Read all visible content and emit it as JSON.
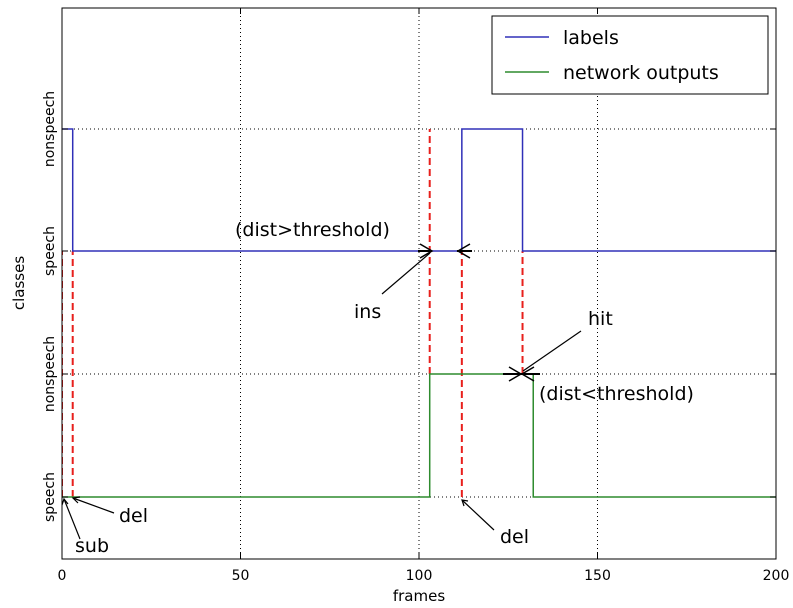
{
  "chart_data": {
    "type": "line",
    "xlabel": "frames",
    "ylabel": "classes",
    "xlim": [
      0,
      200
    ],
    "ylim": [
      0,
      4
    ],
    "x_ticks": [
      {
        "value": 0,
        "label": "0"
      },
      {
        "value": 50,
        "label": "50"
      },
      {
        "value": 100,
        "label": "100"
      },
      {
        "value": 150,
        "label": "150"
      },
      {
        "value": 200,
        "label": "200"
      }
    ],
    "y_ticks": [
      {
        "value": 0,
        "label": "speech"
      },
      {
        "value": 1,
        "label": "nonspeech"
      },
      {
        "value": 2,
        "label": "speech"
      },
      {
        "value": 3,
        "label": "nonspeech"
      }
    ],
    "grid": true,
    "legend_position": "top-right",
    "series": [
      {
        "name": "labels",
        "color": "#3030b8",
        "style": "step",
        "points": [
          [
            0,
            3
          ],
          [
            3,
            3
          ],
          [
            3,
            2
          ],
          [
            112,
            2
          ],
          [
            112,
            3
          ],
          [
            129,
            3
          ],
          [
            129,
            2
          ],
          [
            200,
            2
          ]
        ]
      },
      {
        "name": "network outputs",
        "color": "#2e8b2e",
        "style": "step",
        "points": [
          [
            0,
            0
          ],
          [
            103,
            0
          ],
          [
            103,
            1
          ],
          [
            132,
            1
          ],
          [
            132,
            0
          ],
          [
            200,
            0
          ]
        ]
      }
    ],
    "event_lines": {
      "color": "#e8201c",
      "segments": [
        {
          "x": 0,
          "y0": 0,
          "y1": 2
        },
        {
          "x": 3,
          "y0": 0,
          "y1": 2
        },
        {
          "x": 103,
          "y0": 1,
          "y1": 3
        },
        {
          "x": 112,
          "y0": 0,
          "y1": 2
        },
        {
          "x": 129,
          "y0": 1,
          "y1": 2
        }
      ]
    },
    "annotations": [
      {
        "text": "(dist>threshold)"
      },
      {
        "text": "ins"
      },
      {
        "text": "hit"
      },
      {
        "text": "(dist<threshold)"
      },
      {
        "text": "del"
      },
      {
        "text": "sub"
      },
      {
        "text": "del"
      }
    ]
  }
}
